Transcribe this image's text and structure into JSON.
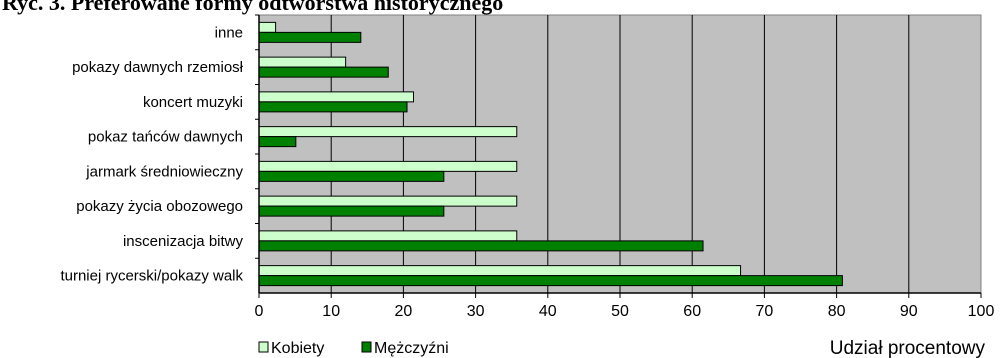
{
  "chart_data": {
    "type": "bar",
    "orientation": "horizontal",
    "title": "Ryc. 3. Preferowane formy odtwórstwa historycznego",
    "xlabel": "Udział procentowy",
    "ylabel": "",
    "xlim": [
      0,
      100
    ],
    "x_ticks": [
      "0",
      "10",
      "20",
      "30",
      "40",
      "50",
      "60",
      "70",
      "80",
      "90",
      "100"
    ],
    "grid": true,
    "legend_position": "bottom-left",
    "categories": [
      "inne",
      "pokazy dawnych rzemiosł",
      "koncert muzyki",
      "pokaz tańców dawnych",
      "jarmark średniowieczny",
      "pokazy życia obozowego",
      "inscenizacja bitwy",
      "turniej rycerski/pokazy walk"
    ],
    "series": [
      {
        "name": "Kobiety",
        "color": "#ccffcc",
        "values": [
          2.3,
          12,
          21.4,
          35.7,
          35.7,
          35.7,
          35.7,
          66.7
        ]
      },
      {
        "name": "Mężczyźni",
        "color": "#008000",
        "values": [
          14.1,
          17.9,
          20.5,
          5.1,
          25.6,
          25.6,
          61.5,
          80.8
        ]
      }
    ],
    "plot_background": "#c0c0c0"
  }
}
